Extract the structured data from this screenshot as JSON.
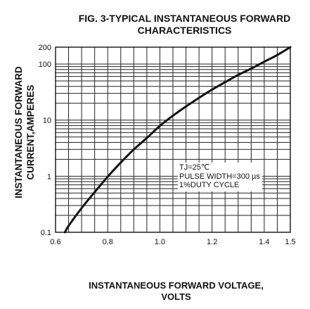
{
  "chart_data": {
    "type": "line",
    "title_lines": [
      "FIG. 3-TYPICAL INSTANTANEOUS FORWARD",
      "CHARACTERISTICS"
    ],
    "xlabel_lines": [
      "INSTANTANEOUS FORWARD VOLTAGE,",
      "VOLTS"
    ],
    "ylabel_lines": [
      "INSTANTANEOUS FORWARD",
      "CURRENT,AMPERES"
    ],
    "xlim": [
      0.6,
      1.5
    ],
    "ylim": [
      0.1,
      200
    ],
    "yscale": "log",
    "grid": true,
    "x_ticks": [
      0.6,
      0.8,
      1.0,
      1.2,
      1.4,
      1.5
    ],
    "x_tick_labels": [
      "0.6",
      "0.8",
      "1.0",
      "1.2",
      "1.4",
      "1.5"
    ],
    "y_ticks": [
      0.1,
      1,
      10,
      100,
      200
    ],
    "y_tick_labels": [
      "0.1",
      "1",
      "10",
      "100",
      "200"
    ],
    "annotation": [
      "TJ=25℃",
      "PULSE WIDTH=300 µs",
      "1%DUTY CYCLE"
    ],
    "series": [
      {
        "x": [
          0.636,
          0.65,
          0.7,
          0.75,
          0.8,
          0.85,
          0.9,
          0.95,
          1.0,
          1.05,
          1.1,
          1.15,
          1.2,
          1.25,
          1.3,
          1.35,
          1.4,
          1.45,
          1.5
        ],
        "y": [
          0.1,
          0.13,
          0.27,
          0.52,
          0.98,
          1.75,
          3.0,
          4.8,
          7.9,
          12.0,
          17.5,
          25.0,
          35.0,
          47.5,
          64.0,
          83.0,
          110.0,
          145.0,
          200.0
        ]
      }
    ],
    "line_color": "#111111"
  }
}
